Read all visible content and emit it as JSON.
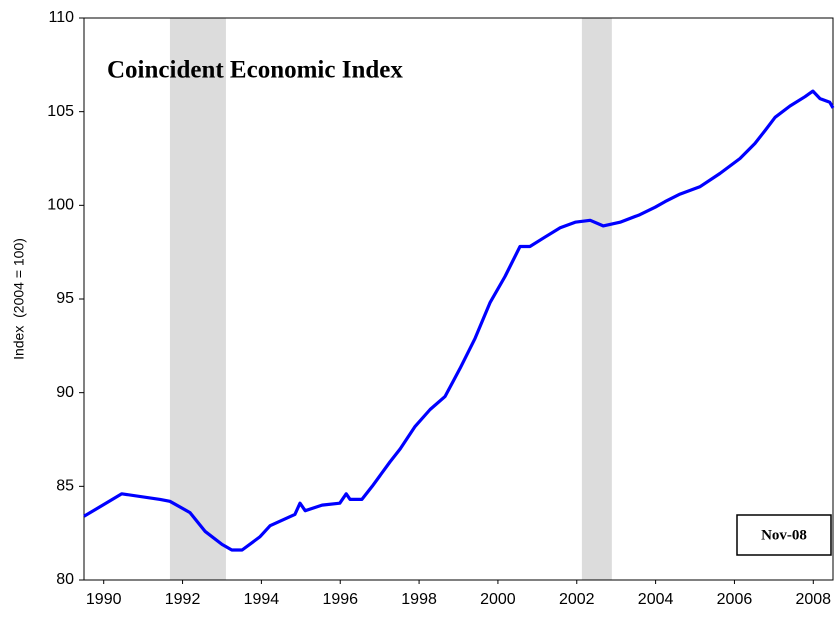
{
  "chart_data": {
    "type": "line",
    "title": "Coincident Economic Index",
    "y_label": "Index  (2004 = 100)",
    "annotation": "Nov-08",
    "x": [
      1990.0,
      1990.96,
      1991.93,
      1992.18,
      1992.69,
      1993.07,
      1993.5,
      1993.75,
      1994.01,
      1994.46,
      1994.72,
      1995.35,
      1995.48,
      1995.61,
      1996.04,
      1996.49,
      1996.65,
      1996.75,
      1997.05,
      1997.31,
      1997.76,
      1998.02,
      1998.4,
      1998.78,
      1999.16,
      1999.54,
      1999.92,
      2000.3,
      2000.68,
      2001.06,
      2001.31,
      2001.69,
      2002.08,
      2002.46,
      2002.84,
      2003.17,
      2003.6,
      2004.1,
      2004.49,
      2004.74,
      2005.12,
      2005.63,
      2006.13,
      2006.64,
      2007.02,
      2007.28,
      2007.53,
      2007.91,
      2008.29,
      2008.49,
      2008.67,
      2008.92,
      2009.0
    ],
    "series": [
      {
        "name": "Coincident Economic Index",
        "color": "#0000ff",
        "values": [
          83.4,
          84.6,
          84.3,
          84.2,
          83.6,
          82.6,
          81.9,
          81.6,
          81.6,
          82.3,
          82.9,
          83.5,
          84.1,
          83.7,
          84.0,
          84.1,
          84.6,
          84.3,
          84.3,
          85.0,
          86.3,
          87.0,
          88.2,
          89.1,
          89.8,
          91.3,
          92.9,
          94.8,
          96.2,
          97.8,
          97.8,
          98.3,
          98.8,
          99.1,
          99.2,
          98.9,
          99.1,
          99.5,
          99.9,
          100.2,
          100.6,
          101.0,
          101.7,
          102.5,
          103.3,
          104.0,
          104.7,
          105.3,
          105.8,
          106.1,
          105.7,
          105.5,
          105.2
        ]
      }
    ],
    "shaded_periods": [
      [
        1992.18,
        1993.6
      ],
      [
        2002.63,
        2003.39
      ]
    ],
    "shade_color": "#dcdcdc",
    "xlim": [
      1990,
      2009
    ],
    "ylim": [
      80,
      110
    ],
    "xticks": [
      {
        "value": 1990.5,
        "label": "1990"
      },
      {
        "value": 1992.5,
        "label": "1992"
      },
      {
        "value": 1994.5,
        "label": "1994"
      },
      {
        "value": 1996.5,
        "label": "1996"
      },
      {
        "value": 1998.5,
        "label": "1998"
      },
      {
        "value": 2000.5,
        "label": "2000"
      },
      {
        "value": 2002.5,
        "label": "2002"
      },
      {
        "value": 2004.5,
        "label": "2004"
      },
      {
        "value": 2006.5,
        "label": "2006"
      },
      {
        "value": 2008.5,
        "label": "2008"
      }
    ],
    "yticks": [
      80,
      85,
      90,
      95,
      100,
      105,
      110
    ]
  }
}
